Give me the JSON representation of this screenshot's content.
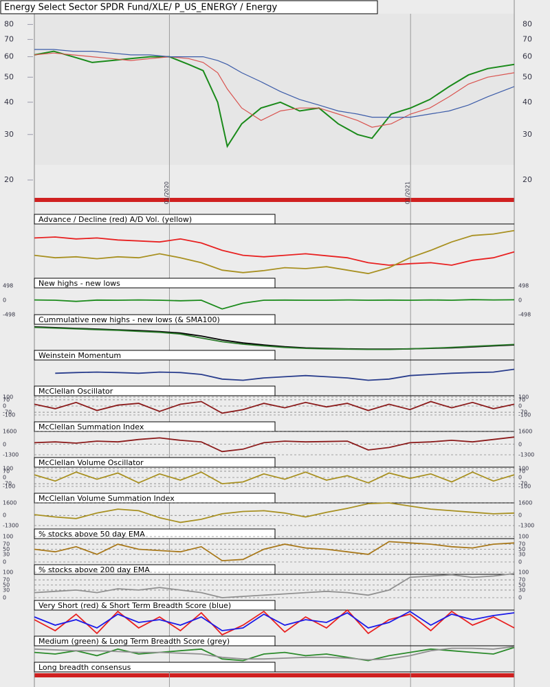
{
  "chart_data": [
    {
      "type": "line",
      "title": "Energy Select Sector SPDR Fund/XLE/ P_US_ENERGY / Energy",
      "log_scale": true,
      "x": [
        2019.44,
        2019.52,
        2019.6,
        2019.68,
        2019.76,
        2019.84,
        2019.92,
        2020.0,
        2020.08,
        2020.14,
        2020.2,
        2020.24,
        2020.3,
        2020.38,
        2020.46,
        2020.54,
        2020.62,
        2020.7,
        2020.78,
        2020.84,
        2020.92,
        2021.0,
        2021.08,
        2021.16,
        2021.24,
        2021.32,
        2021.43
      ],
      "xlim": [
        2019.44,
        2021.43
      ],
      "xticks": [
        {
          "value": 2020,
          "label": "01/2020"
        },
        {
          "value": 2021,
          "label": "01/2021"
        }
      ],
      "ylim": [
        20,
        88
      ],
      "yticks": [
        20,
        30,
        40,
        50,
        60,
        70,
        80
      ],
      "series": [
        {
          "color": "#1a8a1a",
          "values": [
            61,
            63,
            60,
            57,
            58,
            59,
            60,
            60,
            56,
            53,
            40,
            27,
            33,
            38,
            40,
            37,
            38,
            33,
            30,
            29,
            36,
            38,
            41,
            46,
            51,
            54,
            56
          ]
        },
        {
          "color": "#d9534f",
          "values": [
            61,
            62,
            61,
            60,
            59,
            58,
            59,
            60,
            59,
            57,
            52,
            45,
            38,
            34,
            37,
            38,
            38,
            36,
            34,
            32,
            33,
            36,
            38,
            42,
            47,
            50,
            52
          ]
        },
        {
          "color": "#3b5ba8",
          "values": [
            64,
            64,
            63,
            63,
            62,
            61,
            61,
            60,
            60,
            60,
            58,
            56,
            52,
            48,
            44,
            41,
            39,
            37,
            36,
            35,
            35,
            35,
            36,
            37,
            39,
            42,
            46
          ]
        }
      ]
    },
    {
      "type": "line",
      "title": "Advance / Decline (red) A/D Vol. (yellow)",
      "ylim": [
        0,
        100
      ],
      "series": [
        {
          "color": "#e82020",
          "values": [
            80,
            82,
            78,
            80,
            76,
            74,
            72,
            78,
            70,
            55,
            45,
            42,
            45,
            48,
            44,
            40,
            30,
            25,
            28,
            30,
            25,
            35,
            40,
            52
          ]
        },
        {
          "color": "#a89020",
          "values": [
            45,
            40,
            42,
            38,
            42,
            40,
            48,
            40,
            30,
            15,
            10,
            14,
            20,
            18,
            22,
            15,
            8,
            20,
            40,
            55,
            72,
            85,
            88,
            95
          ]
        }
      ]
    },
    {
      "type": "line",
      "title": "New highs - new lows",
      "ylim": [
        -498,
        498
      ],
      "yticks": [
        498,
        0,
        -498
      ],
      "series": [
        {
          "color": "#1a8a1a",
          "values": [
            10,
            0,
            -40,
            5,
            0,
            10,
            0,
            -20,
            0,
            -300,
            -100,
            0,
            5,
            0,
            0,
            10,
            0,
            5,
            0,
            10,
            0,
            20,
            10,
            15
          ]
        }
      ]
    },
    {
      "type": "line",
      "title": "Cummulative new highs - new lows (& SMA100)",
      "ylim": [
        0,
        100
      ],
      "series": [
        {
          "color": "#000000",
          "values": [
            95,
            92,
            89,
            86,
            83,
            80,
            76,
            70,
            58,
            42,
            30,
            22,
            15,
            10,
            8,
            6,
            5,
            5,
            6,
            8,
            10,
            14,
            18,
            22
          ]
        },
        {
          "color": "#2a7a2a",
          "values": [
            93,
            90,
            87,
            84,
            81,
            77,
            73,
            66,
            50,
            35,
            25,
            18,
            12,
            8,
            6,
            5,
            4,
            4,
            6,
            9,
            12,
            16,
            20,
            24
          ]
        }
      ]
    },
    {
      "type": "line",
      "title": "Weinstein Momentum",
      "ylim": [
        0,
        100
      ],
      "series": [
        {
          "color": "#283c8c",
          "values": [
            null,
            55,
            58,
            60,
            58,
            55,
            60,
            58,
            50,
            30,
            25,
            35,
            40,
            45,
            40,
            35,
            25,
            30,
            45,
            50,
            55,
            58,
            60,
            72
          ]
        }
      ]
    },
    {
      "type": "line",
      "title": "McClellan Oscillator",
      "ylim": [
        -100,
        100
      ],
      "yticks": [
        100,
        70,
        0,
        -70,
        -100
      ],
      "grid": true,
      "series": [
        {
          "color": "#8b1a1a",
          "values": [
            20,
            -30,
            40,
            -50,
            10,
            30,
            -60,
            20,
            50,
            -80,
            -40,
            30,
            -20,
            40,
            -10,
            30,
            -50,
            20,
            -40,
            50,
            -20,
            40,
            -30,
            20
          ]
        }
      ]
    },
    {
      "type": "line",
      "title": "McClellan Summation Index",
      "ylim": [
        -1300,
        1600
      ],
      "yticks": [
        1600,
        0,
        -1300
      ],
      "grid": true,
      "series": [
        {
          "color": "#8b1a1a",
          "values": [
            200,
            300,
            150,
            400,
            300,
            600,
            800,
            500,
            300,
            -900,
            -600,
            200,
            400,
            300,
            350,
            400,
            -700,
            -400,
            200,
            300,
            500,
            300,
            600,
            900
          ]
        }
      ]
    },
    {
      "type": "line",
      "title": "McClellan Volume Oscillator",
      "ylim": [
        -100,
        100
      ],
      "yticks": [
        100,
        70,
        0,
        -70,
        -100
      ],
      "grid": true,
      "series": [
        {
          "color": "#a89020",
          "values": [
            30,
            -40,
            60,
            -20,
            50,
            -60,
            40,
            -30,
            60,
            -70,
            -50,
            40,
            -20,
            60,
            -30,
            20,
            -60,
            50,
            -10,
            40,
            -50,
            60,
            -40,
            30
          ]
        }
      ]
    },
    {
      "type": "line",
      "title": "McClellan Volume Summation Index",
      "ylim": [
        -1300,
        1600
      ],
      "yticks": [
        1600,
        0,
        -1300
      ],
      "grid": true,
      "series": [
        {
          "color": "#a89020",
          "values": [
            100,
            -200,
            -400,
            300,
            800,
            600,
            -300,
            -900,
            -500,
            200,
            500,
            600,
            300,
            -200,
            400,
            900,
            1500,
            1600,
            1200,
            800,
            600,
            400,
            200,
            300
          ]
        }
      ]
    },
    {
      "type": "line",
      "title": "% stocks above 50 day EMA",
      "ylim": [
        0,
        100
      ],
      "yticks": [
        100,
        70,
        50,
        30,
        0
      ],
      "grid": true,
      "series": [
        {
          "color": "#a8781a",
          "values": [
            50,
            40,
            60,
            30,
            70,
            50,
            45,
            40,
            60,
            5,
            10,
            50,
            70,
            55,
            50,
            40,
            30,
            80,
            75,
            70,
            60,
            55,
            70,
            75
          ]
        }
      ]
    },
    {
      "type": "line",
      "title": "% stocks above 200 day EMA",
      "ylim": [
        0,
        100
      ],
      "yticks": [
        100,
        70,
        50,
        30,
        0
      ],
      "grid": true,
      "series": [
        {
          "color": "#909090",
          "values": [
            20,
            25,
            30,
            20,
            35,
            30,
            40,
            30,
            20,
            0,
            5,
            10,
            15,
            20,
            25,
            20,
            10,
            30,
            80,
            85,
            90,
            80,
            85,
            95
          ]
        }
      ]
    },
    {
      "type": "line",
      "title": "Very Short (red) & Short Term Breadth Score (blue)",
      "ylim": [
        0,
        100
      ],
      "series": [
        {
          "color": "#e82020",
          "values": [
            60,
            20,
            80,
            10,
            90,
            30,
            70,
            20,
            85,
            5,
            40,
            90,
            15,
            70,
            30,
            95,
            10,
            60,
            80,
            20,
            90,
            40,
            70,
            30
          ]
        },
        {
          "color": "#1a1ae8",
          "values": [
            70,
            40,
            60,
            30,
            80,
            50,
            60,
            40,
            70,
            20,
            30,
            80,
            40,
            60,
            50,
            85,
            30,
            50,
            90,
            40,
            80,
            60,
            75,
            85
          ]
        }
      ]
    },
    {
      "type": "line",
      "title": "Medium (green) & Long Term Breadth Score (grey)",
      "ylim": [
        0,
        100
      ],
      "series": [
        {
          "color": "#2a8a2a",
          "values": [
            60,
            50,
            70,
            40,
            80,
            50,
            60,
            70,
            80,
            20,
            10,
            50,
            60,
            40,
            50,
            30,
            10,
            40,
            60,
            80,
            70,
            60,
            50,
            90
          ]
        },
        {
          "color": "#909090",
          "values": [
            80,
            75,
            70,
            70,
            65,
            60,
            60,
            55,
            50,
            30,
            20,
            20,
            25,
            30,
            30,
            25,
            15,
            20,
            40,
            70,
            85,
            85,
            80,
            95
          ]
        }
      ]
    },
    {
      "type": "line",
      "title": "Long breadth consensus"
    }
  ]
}
